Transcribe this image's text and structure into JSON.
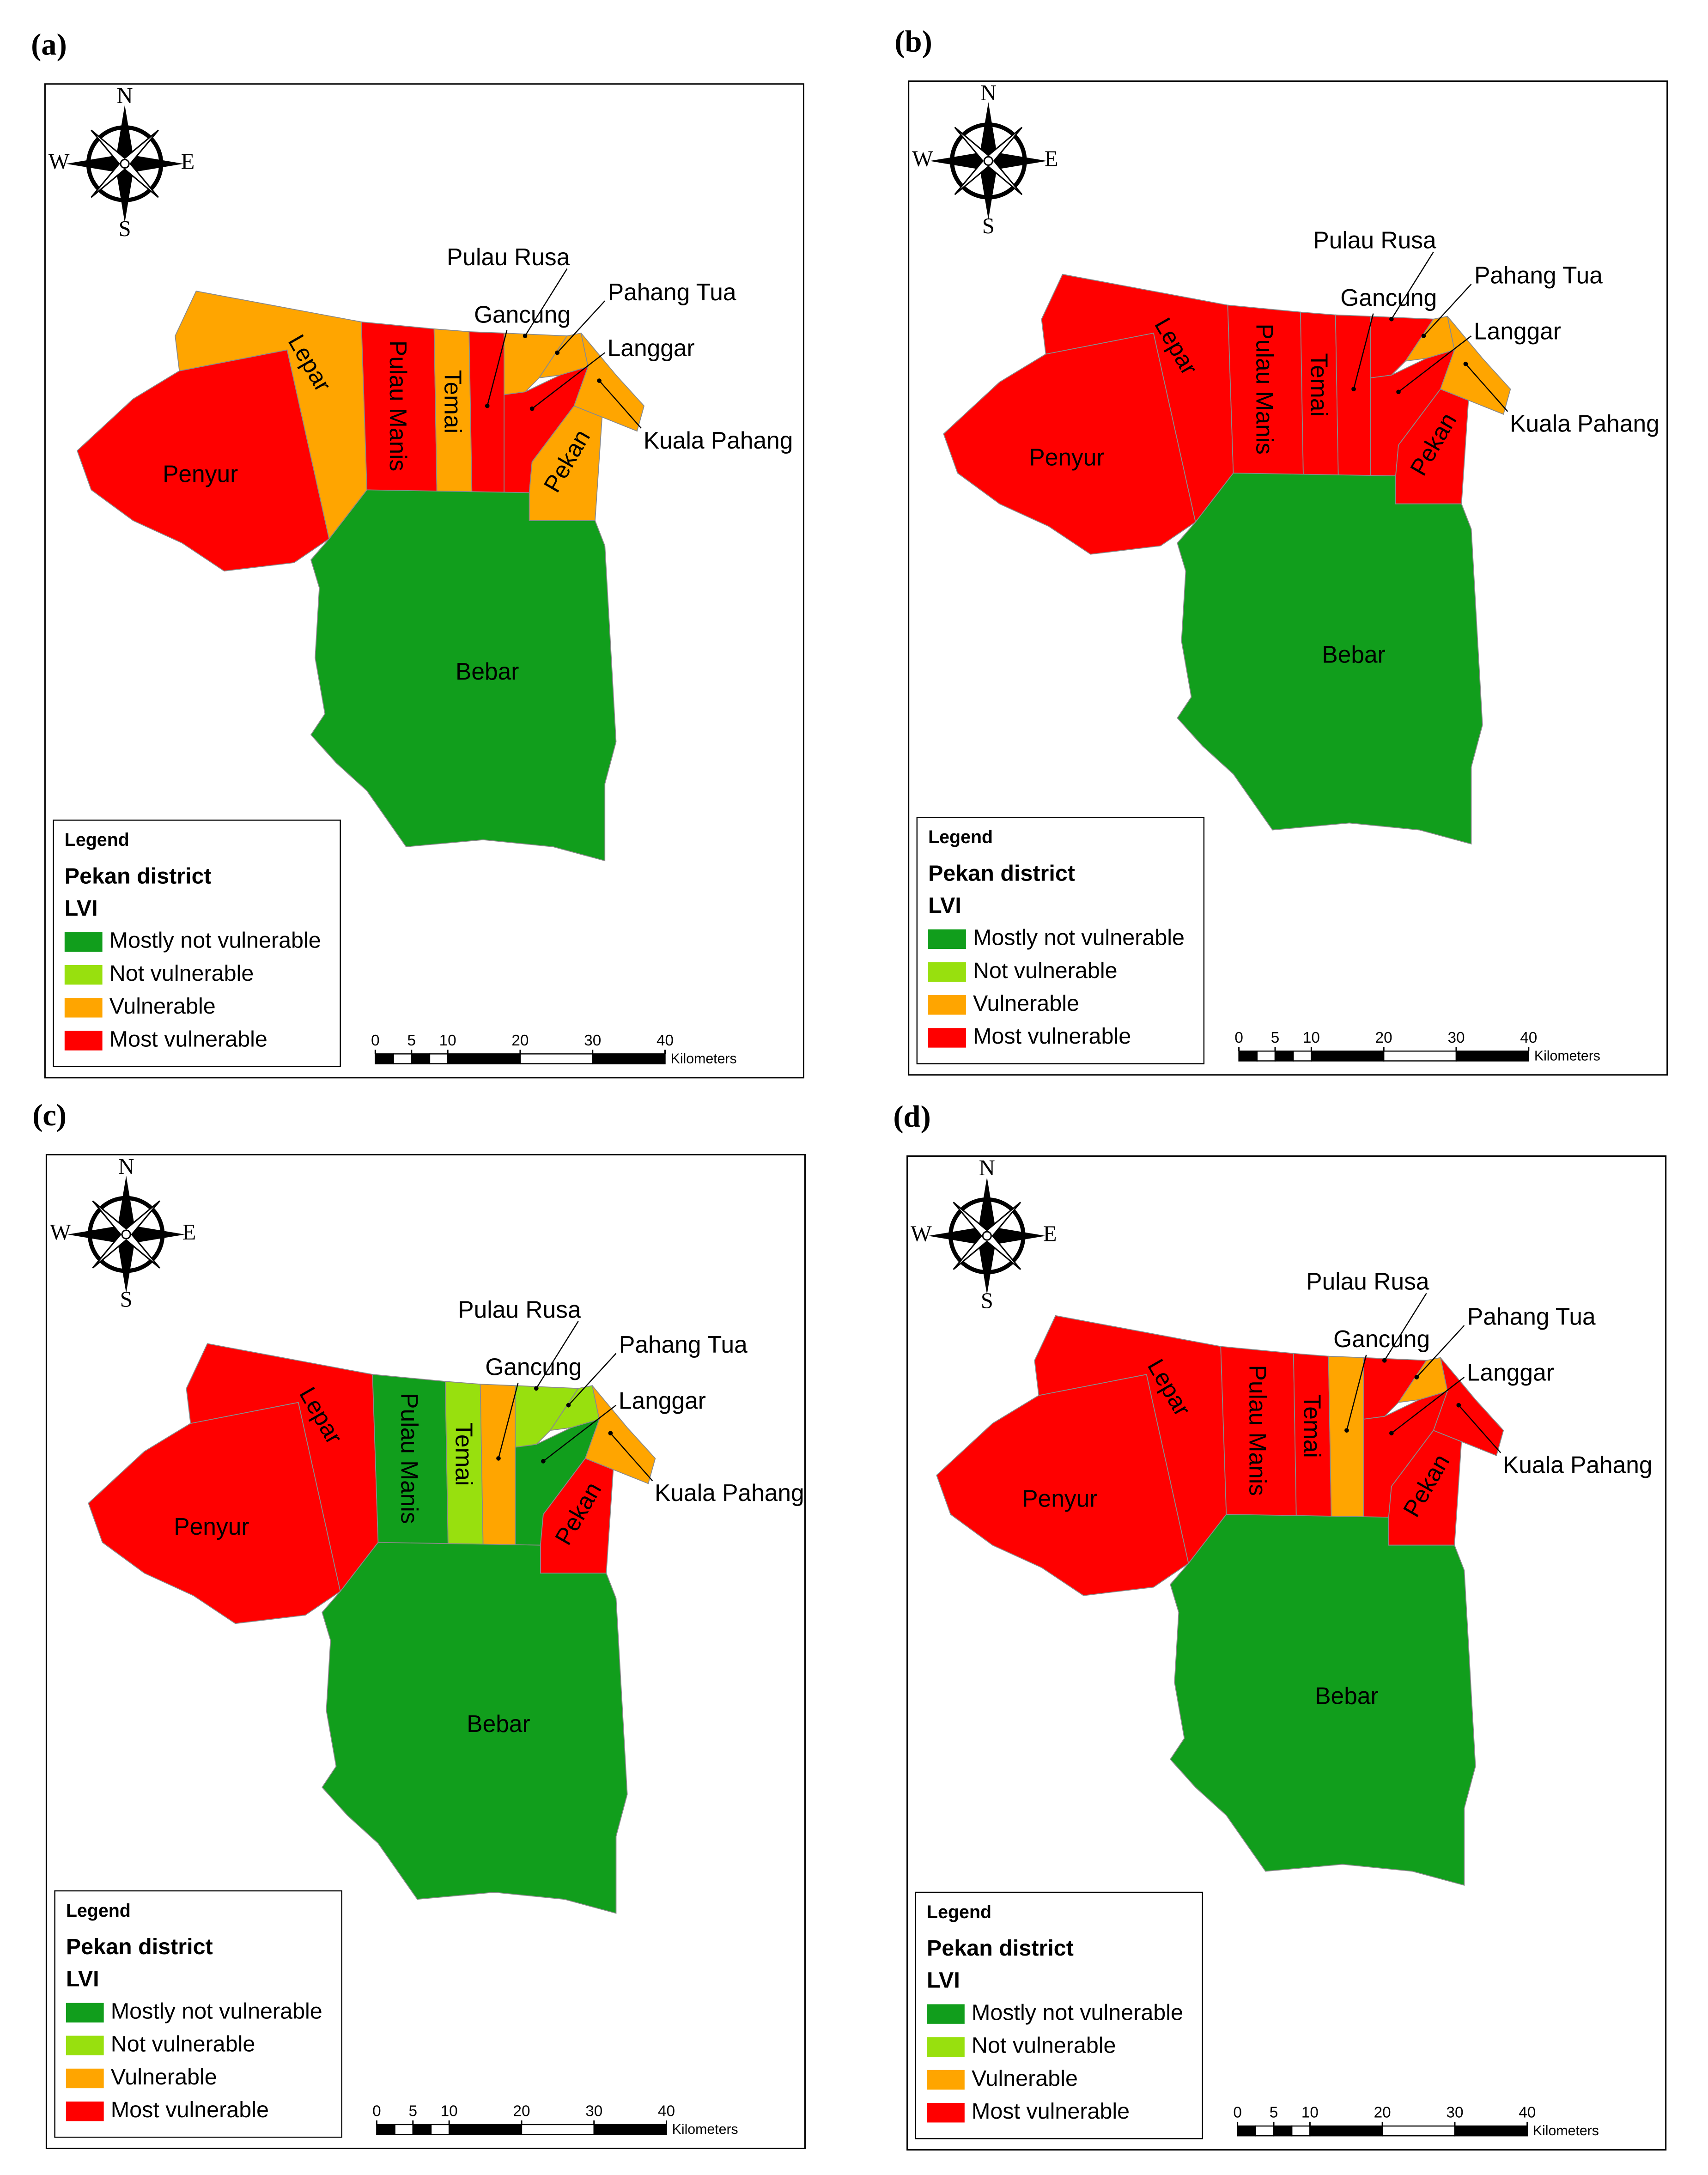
{
  "legend": {
    "title": "Legend",
    "layer": "Pekan district",
    "field": "LVI",
    "classes": [
      {
        "name": "Mostly not vulnerable",
        "color": "#119e1c"
      },
      {
        "name": "Not vulnerable",
        "color": "#98e00e"
      },
      {
        "name": "Vulnerable",
        "color": "#ffa500"
      },
      {
        "name": "Most vulnerable",
        "color": "#ff0000"
      }
    ]
  },
  "compass": {
    "north": "N",
    "south": "S",
    "west": "W",
    "east": "E"
  },
  "scale_bar": {
    "ticks": [
      0,
      5,
      10,
      20,
      30,
      40
    ],
    "unit": "Kilometers"
  },
  "panels": [
    {
      "label": "(a)",
      "regions": [
        {
          "name": "Penyur",
          "lvi": "Most vulnerable"
        },
        {
          "name": "Lepar",
          "lvi": "Vulnerable"
        },
        {
          "name": "Pulau Manis",
          "lvi": "Most vulnerable"
        },
        {
          "name": "Temai",
          "lvi": "Vulnerable"
        },
        {
          "name": "Gancung",
          "lvi": "Most vulnerable"
        },
        {
          "name": "Pulau Rusa",
          "lvi": "Vulnerable"
        },
        {
          "name": "Pahang Tua",
          "lvi": "Vulnerable"
        },
        {
          "name": "Langgar",
          "lvi": "Most vulnerable"
        },
        {
          "name": "Pekan",
          "lvi": "Vulnerable"
        },
        {
          "name": "Kuala Pahang",
          "lvi": "Vulnerable"
        },
        {
          "name": "Bebar",
          "lvi": "Mostly not vulnerable"
        }
      ]
    },
    {
      "label": "(b)",
      "regions": [
        {
          "name": "Penyur",
          "lvi": "Most vulnerable"
        },
        {
          "name": "Lepar",
          "lvi": "Most vulnerable"
        },
        {
          "name": "Pulau Manis",
          "lvi": "Most vulnerable"
        },
        {
          "name": "Temai",
          "lvi": "Most vulnerable"
        },
        {
          "name": "Gancung",
          "lvi": "Most vulnerable"
        },
        {
          "name": "Pulau Rusa",
          "lvi": "Most vulnerable"
        },
        {
          "name": "Pahang Tua",
          "lvi": "Vulnerable"
        },
        {
          "name": "Langgar",
          "lvi": "Most vulnerable"
        },
        {
          "name": "Pekan",
          "lvi": "Most vulnerable"
        },
        {
          "name": "Kuala Pahang",
          "lvi": "Vulnerable"
        },
        {
          "name": "Bebar",
          "lvi": "Mostly not vulnerable"
        }
      ]
    },
    {
      "label": "(c)",
      "regions": [
        {
          "name": "Penyur",
          "lvi": "Most vulnerable"
        },
        {
          "name": "Lepar",
          "lvi": "Most vulnerable"
        },
        {
          "name": "Pulau Manis",
          "lvi": "Mostly not vulnerable"
        },
        {
          "name": "Temai",
          "lvi": "Not vulnerable"
        },
        {
          "name": "Gancung",
          "lvi": "Vulnerable"
        },
        {
          "name": "Pulau Rusa",
          "lvi": "Not vulnerable"
        },
        {
          "name": "Pahang Tua",
          "lvi": "Not vulnerable"
        },
        {
          "name": "Langgar",
          "lvi": "Mostly not vulnerable"
        },
        {
          "name": "Pekan",
          "lvi": "Most vulnerable"
        },
        {
          "name": "Kuala Pahang",
          "lvi": "Vulnerable"
        },
        {
          "name": "Bebar",
          "lvi": "Mostly not vulnerable"
        }
      ]
    },
    {
      "label": "(d)",
      "regions": [
        {
          "name": "Penyur",
          "lvi": "Most vulnerable"
        },
        {
          "name": "Lepar",
          "lvi": "Most vulnerable"
        },
        {
          "name": "Pulau Manis",
          "lvi": "Most vulnerable"
        },
        {
          "name": "Temai",
          "lvi": "Most vulnerable"
        },
        {
          "name": "Gancung",
          "lvi": "Vulnerable"
        },
        {
          "name": "Pulau Rusa",
          "lvi": "Most vulnerable"
        },
        {
          "name": "Pahang Tua",
          "lvi": "Vulnerable"
        },
        {
          "name": "Langgar",
          "lvi": "Most vulnerable"
        },
        {
          "name": "Pekan",
          "lvi": "Most vulnerable"
        },
        {
          "name": "Kuala Pahang",
          "lvi": "Most vulnerable"
        },
        {
          "name": "Bebar",
          "lvi": "Mostly not vulnerable"
        }
      ]
    }
  ]
}
